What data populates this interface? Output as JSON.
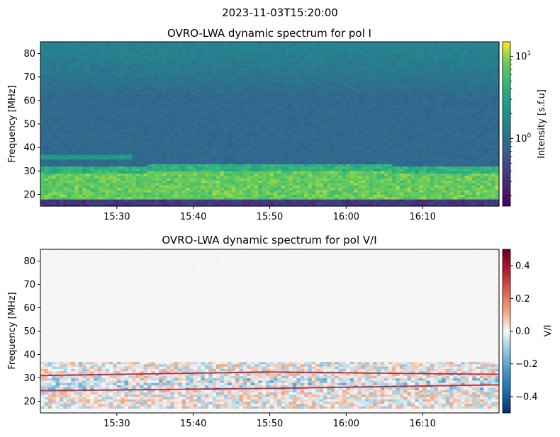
{
  "figure": {
    "suptitle": "2023-11-03T15:20:00"
  },
  "chart_data": [
    {
      "type": "heatmap",
      "title": "OVRO-LWA dynamic spectrum for pol I",
      "xlabel": "",
      "ylabel": "Frequency [MHz]",
      "x_ticks": [
        "15:30",
        "15:40",
        "15:50",
        "16:00",
        "16:10"
      ],
      "x_range": [
        "15:20",
        "16:20"
      ],
      "y_ticks": [
        20,
        30,
        40,
        50,
        60,
        70,
        80
      ],
      "ylim": [
        15,
        85
      ],
      "colormap": "viridis",
      "colorbar": {
        "label": "Intensity [s.f.u]",
        "scale": "log",
        "range": [
          0.15,
          15
        ],
        "ticks": [
          {
            "value": 10,
            "base": "10",
            "exp": "1"
          },
          {
            "value": 1,
            "base": "10",
            "exp": "0"
          }
        ]
      },
      "features": {
        "background_level": 0.9,
        "upper_band_level": 1.6,
        "bright_band_mhz": [
          18,
          33
        ],
        "bright_band_level": 10,
        "lowest_band_mhz": [
          15,
          18
        ],
        "lowest_band_level": 0.35,
        "weak_line_mhz": 36
      }
    },
    {
      "type": "heatmap",
      "title": "OVRO-LWA dynamic spectrum for pol V/I",
      "xlabel": "",
      "ylabel": "Frequency [MHz]",
      "x_ticks": [
        "15:30",
        "15:40",
        "15:50",
        "16:00",
        "16:10"
      ],
      "x_range": [
        "15:20",
        "16:20"
      ],
      "y_ticks": [
        20,
        30,
        40,
        50,
        60,
        70,
        80
      ],
      "ylim": [
        15,
        85
      ],
      "colormap": "RdBu_r",
      "colorbar": {
        "label": "V/I",
        "scale": "linear",
        "range": [
          -0.5,
          0.5
        ],
        "ticks": [
          {
            "value": 0.4,
            "text": "0.4"
          },
          {
            "value": 0.2,
            "text": "0.2"
          },
          {
            "value": 0.0,
            "text": "0.0"
          },
          {
            "value": -0.2,
            "text": "−0.2"
          },
          {
            "value": -0.4,
            "text": "−0.4"
          }
        ]
      },
      "features": {
        "background_level": 0.01,
        "active_band_mhz": [
          17,
          37
        ],
        "positive_line_mhz": [
          [
            24.5,
            25.5,
            27
          ],
          [
            31,
            32.5,
            31.5
          ]
        ],
        "negative_band_mhz": [
          25,
          30
        ]
      }
    }
  ]
}
